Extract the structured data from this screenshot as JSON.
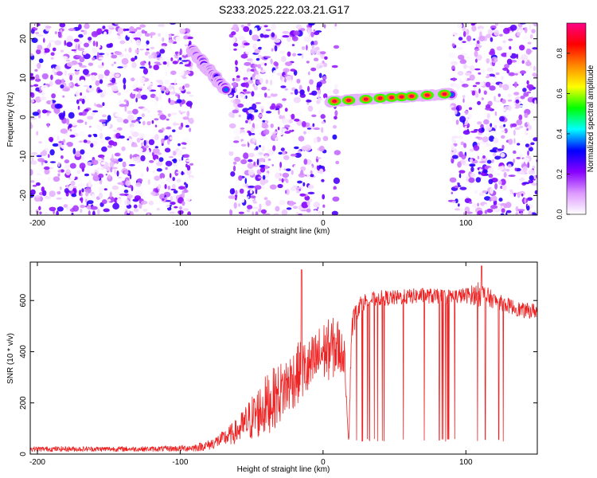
{
  "figure_title": "S233.2025.222.03.21.G17",
  "chart_data": [
    {
      "type": "heatmap",
      "title": "S233.2025.222.03.21.G17",
      "xlabel": "Height of straight line (km)",
      "ylabel": "Frequency (Hz)",
      "xlim": [
        -205,
        150
      ],
      "ylim": [
        -25,
        24
      ],
      "x_ticks": [
        -200,
        -100,
        0,
        100
      ],
      "y_ticks": [
        -20,
        -10,
        0,
        10,
        20
      ],
      "colorbar": {
        "label": "Normalized spectral amplitude",
        "range": [
          0,
          0.95
        ],
        "ticks": [
          0.0,
          0.2,
          0.4,
          0.6,
          0.8
        ],
        "colormap": [
          "#ffffff",
          "#dd99ff",
          "#8800ff",
          "#0000ff",
          "#00ffff",
          "#00ff00",
          "#ffff00",
          "#ff8800",
          "#ff0000",
          "#ff0088"
        ]
      },
      "noise_regions_km": [
        [
          -205,
          -92
        ],
        [
          -65,
          2
        ],
        [
          8,
          10
        ],
        [
          90,
          150
        ]
      ],
      "signal_segments": [
        {
          "x": [
            -92,
            -68
          ],
          "freq_hz": [
            17,
            7
          ],
          "peak_amplitude": 0.5
        },
        {
          "x": [
            5,
            90
          ],
          "freq_hz": [
            4,
            6
          ],
          "peak_amplitude": 0.9
        }
      ],
      "peak_markers_km": [
        8,
        18,
        30,
        40,
        48,
        55,
        62,
        73,
        85
      ]
    },
    {
      "type": "line",
      "xlabel": "Height of straight line (km)",
      "ylabel": "SNR (10 * v/v)",
      "xlim": [
        -205,
        150
      ],
      "ylim": [
        0,
        750
      ],
      "x_ticks": [
        -200,
        -100,
        0,
        100
      ],
      "y_ticks": [
        0,
        200,
        400,
        600
      ],
      "series": [
        {
          "name": "SNR",
          "color": "#ee2222",
          "x": [
            -205,
            -180,
            -150,
            -120,
            -100,
            -90,
            -80,
            -70,
            -60,
            -50,
            -40,
            -30,
            -20,
            -15,
            -10,
            0,
            10,
            15,
            18,
            20,
            25,
            30,
            40,
            50,
            60,
            70,
            80,
            90,
            100,
            110,
            120,
            130,
            140,
            150
          ],
          "y": [
            20,
            20,
            20,
            20,
            22,
            25,
            35,
            60,
            90,
            140,
            190,
            240,
            300,
            330,
            330,
            400,
            420,
            380,
            40,
            500,
            580,
            600,
            610,
            610,
            615,
            620,
            615,
            615,
            620,
            625,
            600,
            580,
            560,
            560
          ],
          "var": [
            10,
            10,
            10,
            10,
            12,
            15,
            20,
            30,
            50,
            90,
            120,
            120,
            120,
            120,
            120,
            120,
            120,
            60,
            10,
            60,
            40,
            30,
            30,
            30,
            30,
            30,
            30,
            30,
            30,
            50,
            30,
            30,
            30,
            30
          ]
        }
      ],
      "annotations": [
        {
          "x": -15,
          "y": 720,
          "text": "spike"
        },
        {
          "x": 111,
          "y": 735,
          "text": "spike"
        }
      ],
      "dropout_floor": 50
    }
  ]
}
